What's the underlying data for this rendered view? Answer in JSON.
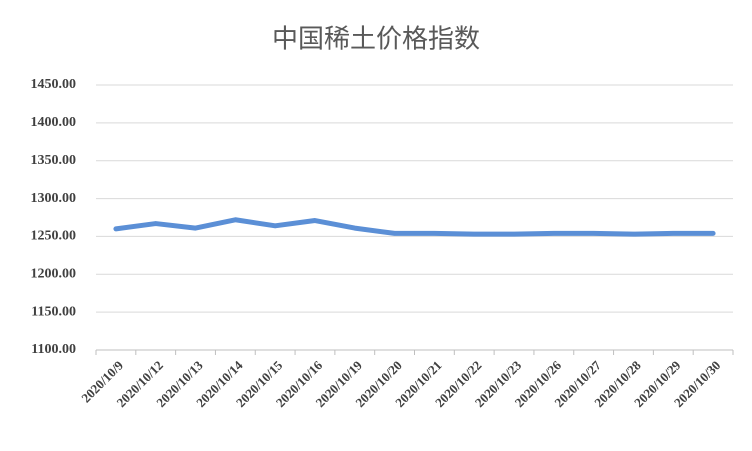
{
  "chart_data": {
    "type": "line",
    "title": "中国稀土价格指数",
    "categories": [
      "2020/10/9",
      "2020/10/12",
      "2020/10/13",
      "2020/10/14",
      "2020/10/15",
      "2020/10/16",
      "2020/10/19",
      "2020/10/20",
      "2020/10/21",
      "2020/10/22",
      "2020/10/23",
      "2020/10/26",
      "2020/10/27",
      "2020/10/28",
      "2020/10/29",
      "2020/10/30"
    ],
    "values": [
      1260,
      1267,
      1261,
      1272,
      1264,
      1271,
      1261,
      1254,
      1254,
      1253,
      1253,
      1254,
      1254,
      1253,
      1254,
      1254
    ],
    "color": "#5b8fd6",
    "ylim": [
      1100,
      1450
    ],
    "yticks": [
      {
        "value": 1100,
        "label": "1100.00"
      },
      {
        "value": 1150,
        "label": "1150.00"
      },
      {
        "value": 1200,
        "label": "1200.00"
      },
      {
        "value": 1250,
        "label": "1250.00"
      },
      {
        "value": 1300,
        "label": "1300.00"
      },
      {
        "value": 1350,
        "label": "1350.00"
      },
      {
        "value": 1400,
        "label": "1400.00"
      },
      {
        "value": 1450,
        "label": "1450.00"
      }
    ],
    "grid": true
  }
}
